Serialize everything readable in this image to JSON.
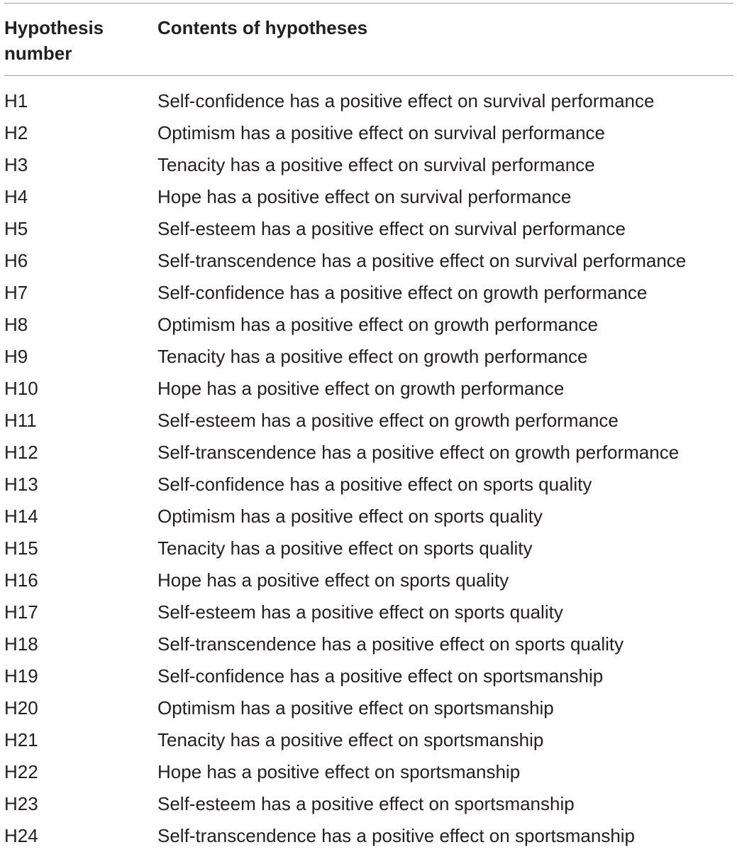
{
  "table": {
    "headers": {
      "number": "Hypothesis number",
      "contents": "Contents of hypotheses"
    },
    "rows": [
      {
        "id": "H1",
        "text": "Self-confidence has a positive effect on survival performance"
      },
      {
        "id": "H2",
        "text": "Optimism has a positive effect on survival performance"
      },
      {
        "id": "H3",
        "text": "Tenacity has a positive effect on survival performance"
      },
      {
        "id": "H4",
        "text": "Hope has a positive effect on survival performance"
      },
      {
        "id": "H5",
        "text": "Self-esteem has a positive effect on survival performance"
      },
      {
        "id": "H6",
        "text": "Self-transcendence has a positive effect on survival performance"
      },
      {
        "id": "H7",
        "text": "Self-confidence has a positive effect on growth performance"
      },
      {
        "id": "H8",
        "text": "Optimism has a positive effect on growth performance"
      },
      {
        "id": "H9",
        "text": "Tenacity has a positive effect on growth performance"
      },
      {
        "id": "H10",
        "text": "Hope has a positive effect on growth performance"
      },
      {
        "id": "H11",
        "text": "Self-esteem has a positive effect on growth performance"
      },
      {
        "id": "H12",
        "text": "Self-transcendence has a positive effect on growth performance"
      },
      {
        "id": "H13",
        "text": "Self-confidence has a positive effect on sports quality"
      },
      {
        "id": "H14",
        "text": "Optimism has a positive effect on sports quality"
      },
      {
        "id": "H15",
        "text": "Tenacity has a positive effect on sports quality"
      },
      {
        "id": "H16",
        "text": "Hope has a positive effect on sports quality"
      },
      {
        "id": "H17",
        "text": "Self-esteem has a positive effect on sports quality"
      },
      {
        "id": "H18",
        "text": "Self-transcendence has a positive effect on sports quality"
      },
      {
        "id": "H19",
        "text": "Self-confidence has a positive effect on sportsmanship"
      },
      {
        "id": "H20",
        "text": "Optimism has a positive effect on sportsmanship"
      },
      {
        "id": "H21",
        "text": "Tenacity has a positive effect on sportsmanship"
      },
      {
        "id": "H22",
        "text": "Hope has a positive effect on sportsmanship"
      },
      {
        "id": "H23",
        "text": "Self-esteem has a positive effect on sportsmanship"
      },
      {
        "id": "H24",
        "text": "Self-transcendence has a positive effect on sportsmanship"
      }
    ]
  }
}
